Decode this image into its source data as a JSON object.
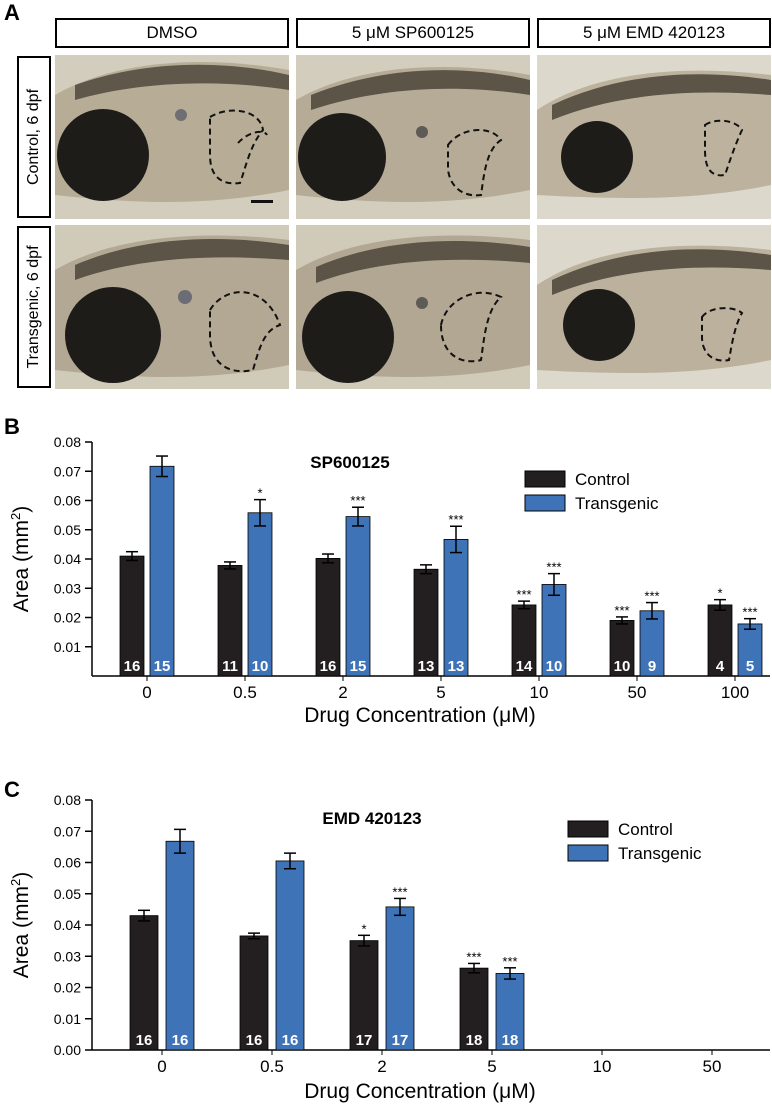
{
  "panels": {
    "a": {
      "letter": "A",
      "column_headers": [
        "DMSO",
        "5 μM SP600125",
        "5 μM EMD 420123"
      ],
      "row_headers": [
        "Control, 6 dpf",
        "Transgenic, 6 dpf"
      ]
    },
    "b": {
      "letter": "B"
    },
    "c": {
      "letter": "C"
    }
  },
  "colors": {
    "control": "#231f20",
    "transgenic": "#3f73b8",
    "photo_bg": "#cdc7b8"
  },
  "chart_data": [
    {
      "type": "bar",
      "title": "SP600125",
      "xlabel": "Drug Concentration (μM)",
      "ylabel": "Area (mm2)",
      "categories": [
        "0",
        "0.5",
        "2",
        "5",
        "10",
        "50",
        "100"
      ],
      "ylim": [
        0,
        0.08
      ],
      "yticks": [
        0.01,
        0.02,
        0.03,
        0.04,
        0.05,
        0.06,
        0.07,
        0.08
      ],
      "legend": "top-right",
      "series": [
        {
          "name": "Control",
          "values": [
            0.041,
            0.0378,
            0.0402,
            0.0365,
            0.0243,
            0.019,
            0.0243
          ],
          "errors": [
            0.0015,
            0.0012,
            0.0015,
            0.0015,
            0.0013,
            0.0012,
            0.0018
          ],
          "sig": [
            "",
            "",
            "",
            "",
            "***",
            "***",
            "*"
          ],
          "n": [
            "16",
            "11",
            "16",
            "13",
            "14",
            "10",
            "4"
          ]
        },
        {
          "name": "Transgenic",
          "values": [
            0.0717,
            0.0558,
            0.0545,
            0.0467,
            0.0313,
            0.0223,
            0.0178
          ],
          "errors": [
            0.0035,
            0.0045,
            0.0032,
            0.0045,
            0.0037,
            0.0028,
            0.0018
          ],
          "sig": [
            "",
            "*",
            "***",
            "***",
            "***",
            "***",
            "***"
          ],
          "n": [
            "15",
            "10",
            "15",
            "13",
            "10",
            "9",
            "5"
          ]
        }
      ]
    },
    {
      "type": "bar",
      "title": "EMD 420123",
      "xlabel": "Drug Concentration (μM)",
      "ylabel": "Area (mm2)",
      "categories": [
        "0",
        "0.5",
        "2",
        "5",
        "10",
        "50"
      ],
      "ylim": [
        0,
        0.08
      ],
      "yticks": [
        0.0,
        0.01,
        0.02,
        0.03,
        0.04,
        0.05,
        0.06,
        0.07,
        0.08
      ],
      "legend": "top-right",
      "series": [
        {
          "name": "Control",
          "values": [
            0.043,
            0.0365,
            0.035,
            0.0262,
            null,
            null
          ],
          "errors": [
            0.0017,
            0.0009,
            0.0017,
            0.0015,
            null,
            null
          ],
          "sig": [
            "",
            "",
            "*",
            "***",
            "",
            ""
          ],
          "n": [
            "16",
            "16",
            "17",
            "18",
            "",
            ""
          ]
        },
        {
          "name": "Transgenic",
          "values": [
            0.0668,
            0.0605,
            0.0458,
            0.0245,
            null,
            null
          ],
          "errors": [
            0.0038,
            0.0025,
            0.0027,
            0.0018,
            null,
            null
          ],
          "sig": [
            "",
            "",
            "***",
            "***",
            "",
            ""
          ],
          "n": [
            "16",
            "16",
            "17",
            "18",
            "",
            ""
          ]
        }
      ]
    }
  ]
}
